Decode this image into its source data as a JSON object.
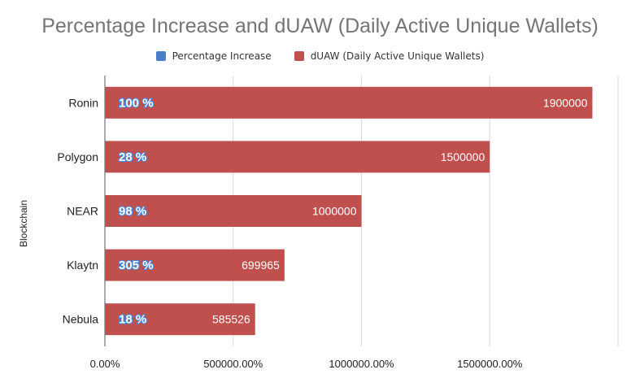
{
  "chart_data": {
    "type": "bar",
    "orientation": "horizontal",
    "title": "Percentage Increase and dUAW (Daily Active Unique Wallets)",
    "ylabel": "Blockchain",
    "xlabel": "",
    "categories": [
      "Ronin",
      "Polygon",
      "NEAR",
      "Klaytn",
      "Nebula"
    ],
    "series": [
      {
        "name": "Percentage Increase",
        "values": [
          100,
          28,
          98,
          305,
          18
        ],
        "labels": [
          "100 %",
          "28 %",
          "98 %",
          "305 %",
          "18 %"
        ],
        "color": "#4a7fc7"
      },
      {
        "name": "dUAW (Daily Active Unique Wallets)",
        "values": [
          1900000,
          1500000,
          1000000,
          699965,
          585526
        ],
        "labels": [
          "1900000",
          "1500000",
          "1000000",
          "699965",
          "585526"
        ],
        "color": "#c0504d"
      }
    ],
    "xlim": [
      0,
      2000000
    ],
    "xticks": [
      0,
      500000,
      1000000,
      1500000
    ],
    "xtick_labels": [
      "0.00%",
      "500000.00%",
      "1000000.00%",
      "1500000.00%"
    ],
    "grid": true,
    "legend_position": "top"
  }
}
